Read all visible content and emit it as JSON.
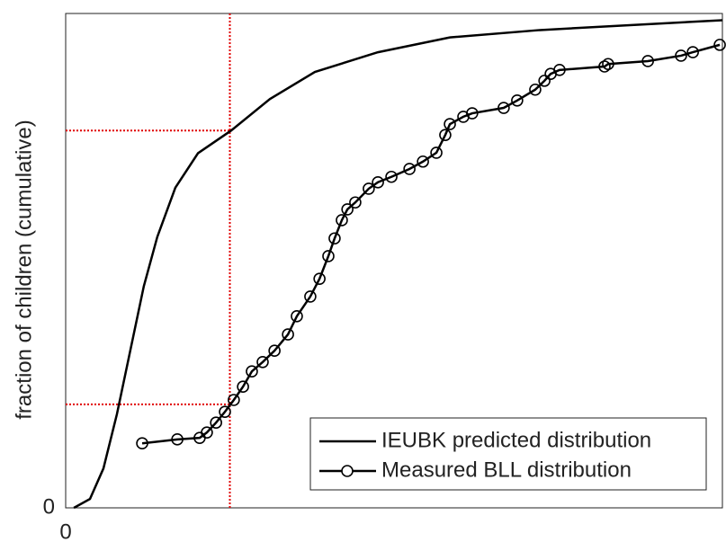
{
  "chart_data": {
    "type": "line",
    "y_label": "fraction of children (cumulative)",
    "xlim": [
      0,
      20
    ],
    "ylim": [
      0,
      1
    ],
    "xticks": [
      0
    ],
    "yticks": [
      0
    ],
    "legend": "lower right",
    "reference_lines": {
      "x": 5,
      "y": [
        0.21,
        0.766
      ],
      "color": "#e00000"
    },
    "series": [
      {
        "name": "IEUBK predicted distribution",
        "color": "#000000",
        "marker": "none",
        "x": [
          0.25,
          0.74,
          1.15,
          1.56,
          1.97,
          2.38,
          2.79,
          3.34,
          4.03,
          5.04,
          6.22,
          7.59,
          9.51,
          11.7,
          14.44,
          17.18,
          20
        ],
        "values": [
          0,
          0.018,
          0.08,
          0.19,
          0.32,
          0.45,
          0.55,
          0.65,
          0.72,
          0.766,
          0.83,
          0.885,
          0.925,
          0.955,
          0.97,
          0.98,
          0.99
        ]
      },
      {
        "name": "Measured BLL distribution",
        "color": "#000000",
        "marker": "circle",
        "x": [
          2.33,
          3.4,
          4.08,
          4.3,
          4.58,
          4.85,
          5.12,
          5.4,
          5.67,
          6.0,
          6.36,
          6.77,
          7.04,
          7.45,
          7.73,
          8.0,
          8.19,
          8.41,
          8.58,
          8.82,
          9.23,
          9.51,
          9.92,
          10.47,
          10.88,
          11.29,
          11.56,
          11.7,
          12.11,
          12.38,
          13.34,
          13.75,
          14.3,
          14.58,
          14.77,
          15.04,
          16.41,
          16.52,
          17.73,
          18.74,
          19.1,
          19.92
        ],
        "values": [
          0.131,
          0.139,
          0.142,
          0.153,
          0.173,
          0.195,
          0.219,
          0.246,
          0.277,
          0.296,
          0.319,
          0.352,
          0.389,
          0.429,
          0.465,
          0.511,
          0.547,
          0.584,
          0.606,
          0.62,
          0.648,
          0.661,
          0.672,
          0.688,
          0.703,
          0.721,
          0.757,
          0.779,
          0.794,
          0.801,
          0.812,
          0.827,
          0.849,
          0.867,
          0.881,
          0.889,
          0.896,
          0.901,
          0.907,
          0.918,
          0.925,
          0.94
        ]
      }
    ]
  }
}
